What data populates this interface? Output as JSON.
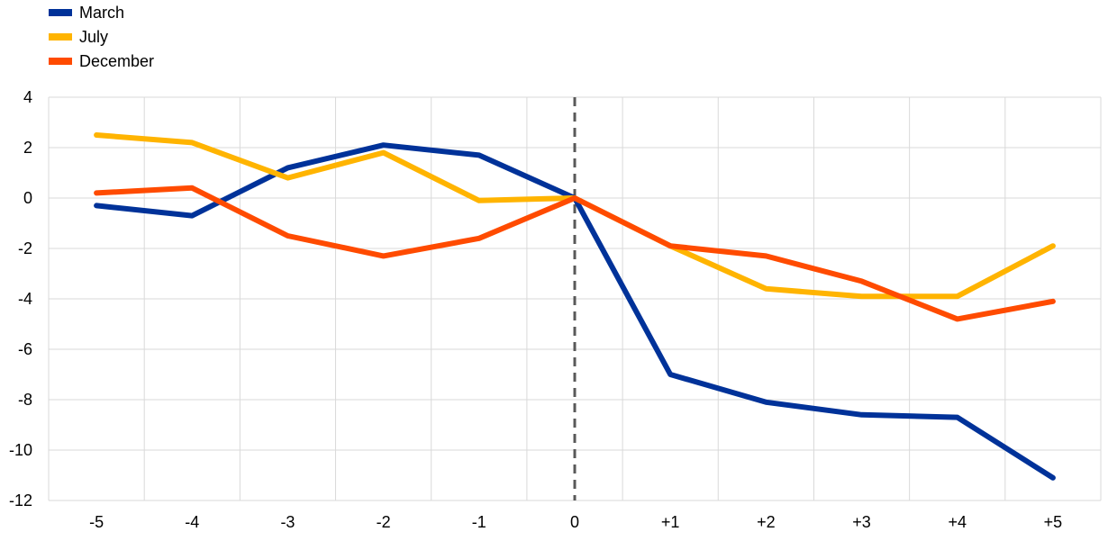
{
  "chart_data": {
    "type": "line",
    "title": "",
    "xlabel": "",
    "ylabel": "",
    "categories": [
      "-5",
      "-4",
      "-3",
      "-2",
      "-1",
      "0",
      "+1",
      "+2",
      "+3",
      "+4",
      "+5"
    ],
    "ylim": [
      -12,
      4
    ],
    "yticks": [
      4,
      2,
      0,
      -2,
      -4,
      -6,
      -8,
      -10,
      -12
    ],
    "grid": true,
    "legend_position": "top-left",
    "reference_line": {
      "category": "0",
      "style": "dashed",
      "color": "#595959"
    },
    "series": [
      {
        "name": "March",
        "color": "#003299",
        "values": [
          -0.3,
          -0.7,
          1.2,
          2.1,
          1.7,
          0,
          -7.0,
          -8.1,
          -8.6,
          -8.7,
          -11.1
        ]
      },
      {
        "name": "July",
        "color": "#FFB400",
        "values": [
          2.5,
          2.2,
          0.8,
          1.8,
          -0.1,
          0,
          -1.9,
          -3.6,
          -3.9,
          -3.9,
          -1.9
        ]
      },
      {
        "name": "December",
        "color": "#FF4B00",
        "values": [
          0.2,
          0.4,
          -1.5,
          -2.3,
          -1.6,
          0,
          -1.9,
          -2.3,
          -3.3,
          -4.8,
          -4.1
        ]
      }
    ]
  }
}
